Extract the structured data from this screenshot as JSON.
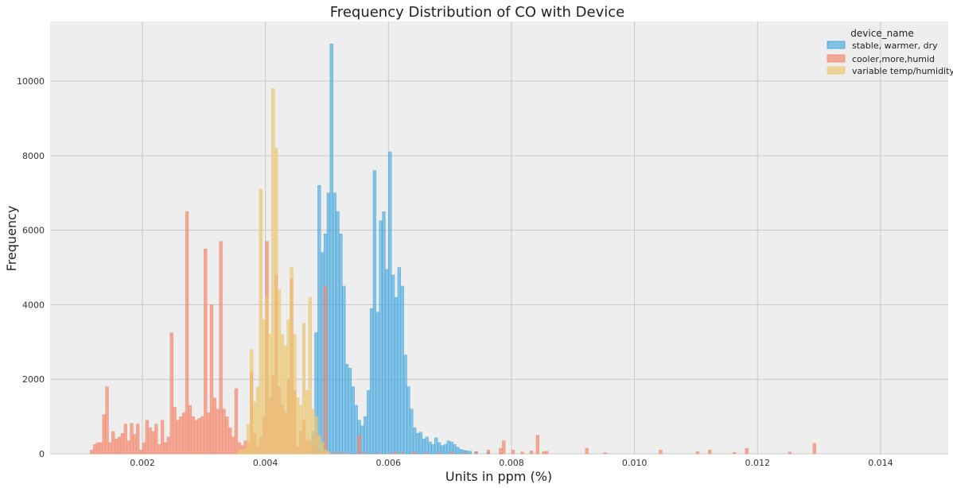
{
  "chart_data": {
    "type": "bar",
    "title": "Frequency Distribution of CO with Device",
    "xlabel": "Units in ppm (%)",
    "ylabel": "Frequency",
    "xlim": [
      0.0005,
      0.0151
    ],
    "ylim": [
      0,
      11600
    ],
    "xticks": [
      0.002,
      0.004,
      0.006,
      0.008,
      0.01,
      0.012,
      0.014
    ],
    "xtick_labels": [
      "0.002",
      "0.004",
      "0.006",
      "0.008",
      "0.010",
      "0.012",
      "0.014"
    ],
    "yticks": [
      0,
      2000,
      4000,
      6000,
      8000,
      10000
    ],
    "ytick_labels": [
      "0",
      "2000",
      "4000",
      "6000",
      "8000",
      "10000"
    ],
    "grid": true,
    "legend": {
      "title": "device_name",
      "placement": "top-right"
    },
    "bin_width": 5e-05,
    "series": [
      {
        "name": "stable, warmer, dry",
        "color": "#3ba3dc",
        "bins": [
          [
            0.0047,
            50
          ],
          [
            0.00475,
            600
          ],
          [
            0.0048,
            3250
          ],
          [
            0.00485,
            7200
          ],
          [
            0.0049,
            5400
          ],
          [
            0.00495,
            5900
          ],
          [
            0.005,
            7000
          ],
          [
            0.00505,
            11000
          ],
          [
            0.0051,
            7000
          ],
          [
            0.00515,
            6500
          ],
          [
            0.0052,
            5900
          ],
          [
            0.00525,
            4500
          ],
          [
            0.0053,
            2400
          ],
          [
            0.00535,
            2300
          ],
          [
            0.0054,
            1800
          ],
          [
            0.00545,
            1300
          ],
          [
            0.0055,
            900
          ],
          [
            0.00555,
            750
          ],
          [
            0.0056,
            1000
          ],
          [
            0.00565,
            1700
          ],
          [
            0.0057,
            3900
          ],
          [
            0.00575,
            7600
          ],
          [
            0.0058,
            3800
          ],
          [
            0.00585,
            6250
          ],
          [
            0.0059,
            6500
          ],
          [
            0.00595,
            4950
          ],
          [
            0.006,
            8100
          ],
          [
            0.00605,
            4800
          ],
          [
            0.0061,
            4200
          ],
          [
            0.00615,
            5000
          ],
          [
            0.0062,
            4500
          ],
          [
            0.00625,
            2650
          ],
          [
            0.0063,
            1800
          ],
          [
            0.00635,
            1200
          ],
          [
            0.0064,
            700
          ],
          [
            0.00645,
            550
          ],
          [
            0.0065,
            580
          ],
          [
            0.00655,
            400
          ],
          [
            0.0066,
            450
          ],
          [
            0.00665,
            320
          ],
          [
            0.0067,
            250
          ],
          [
            0.00675,
            430
          ],
          [
            0.0068,
            300
          ],
          [
            0.00685,
            220
          ],
          [
            0.0069,
            250
          ],
          [
            0.00695,
            350
          ],
          [
            0.007,
            320
          ],
          [
            0.00705,
            250
          ],
          [
            0.0071,
            180
          ],
          [
            0.00715,
            120
          ],
          [
            0.0072,
            100
          ],
          [
            0.00725,
            80
          ],
          [
            0.0073,
            70
          ],
          [
            0.0074,
            60
          ],
          [
            0.0076,
            40
          ],
          [
            0.0078,
            20
          ]
        ]
      },
      {
        "name": "cooler,more,humid",
        "color": "#f3876d",
        "bins": [
          [
            0.00115,
            100
          ],
          [
            0.0012,
            250
          ],
          [
            0.00125,
            300
          ],
          [
            0.0013,
            300
          ],
          [
            0.00135,
            1050
          ],
          [
            0.0014,
            1800
          ],
          [
            0.00145,
            300
          ],
          [
            0.0015,
            600
          ],
          [
            0.00155,
            400
          ],
          [
            0.0016,
            450
          ],
          [
            0.00165,
            550
          ],
          [
            0.0017,
            800
          ],
          [
            0.00175,
            350
          ],
          [
            0.0018,
            820
          ],
          [
            0.00185,
            520
          ],
          [
            0.0019,
            800
          ],
          [
            0.00195,
            100
          ],
          [
            0.002,
            300
          ],
          [
            0.00205,
            900
          ],
          [
            0.0021,
            700
          ],
          [
            0.00215,
            600
          ],
          [
            0.0022,
            800
          ],
          [
            0.00225,
            250
          ],
          [
            0.0023,
            900
          ],
          [
            0.00235,
            300
          ],
          [
            0.0024,
            450
          ],
          [
            0.00245,
            3250
          ],
          [
            0.0025,
            1250
          ],
          [
            0.00255,
            900
          ],
          [
            0.0026,
            1000
          ],
          [
            0.00265,
            1100
          ],
          [
            0.0027,
            6500
          ],
          [
            0.00275,
            1300
          ],
          [
            0.0028,
            1000
          ],
          [
            0.00285,
            900
          ],
          [
            0.0029,
            950
          ],
          [
            0.00295,
            1000
          ],
          [
            0.003,
            5500
          ],
          [
            0.00305,
            1100
          ],
          [
            0.0031,
            4000
          ],
          [
            0.00315,
            1500
          ],
          [
            0.0032,
            1200
          ],
          [
            0.00325,
            5700
          ],
          [
            0.0033,
            1200
          ],
          [
            0.00335,
            1000
          ],
          [
            0.0034,
            700
          ],
          [
            0.00345,
            450
          ],
          [
            0.0035,
            1750
          ],
          [
            0.00355,
            300
          ],
          [
            0.0036,
            220
          ],
          [
            0.00365,
            350
          ],
          [
            0.0037,
            300
          ],
          [
            0.00375,
            2200
          ],
          [
            0.0038,
            550
          ],
          [
            0.00385,
            200
          ],
          [
            0.0039,
            450
          ],
          [
            0.00395,
            1000
          ],
          [
            0.004,
            5700
          ],
          [
            0.00405,
            1500
          ],
          [
            0.0041,
            2100
          ],
          [
            0.00415,
            4800
          ],
          [
            0.0042,
            1800
          ],
          [
            0.00425,
            1300
          ],
          [
            0.0043,
            1100
          ],
          [
            0.00435,
            2000
          ],
          [
            0.0044,
            4700
          ],
          [
            0.00445,
            1700
          ],
          [
            0.0045,
            200
          ],
          [
            0.00455,
            600
          ],
          [
            0.0046,
            900
          ],
          [
            0.00465,
            350
          ],
          [
            0.0047,
            350
          ],
          [
            0.00475,
            200
          ],
          [
            0.0048,
            550
          ],
          [
            0.00485,
            60
          ],
          [
            0.0049,
            40
          ],
          [
            0.00495,
            4500
          ],
          [
            0.005,
            50
          ],
          [
            0.0051,
            40
          ],
          [
            0.0052,
            30
          ],
          [
            0.0053,
            30
          ],
          [
            0.0055,
            500
          ],
          [
            0.0056,
            30
          ],
          [
            0.0058,
            30
          ],
          [
            0.006,
            30
          ],
          [
            0.0061,
            50
          ],
          [
            0.0062,
            30
          ],
          [
            0.0064,
            60
          ],
          [
            0.0066,
            30
          ],
          [
            0.0068,
            30
          ],
          [
            0.007,
            40
          ],
          [
            0.0072,
            40
          ],
          [
            0.0074,
            50
          ],
          [
            0.0076,
            100
          ],
          [
            0.0078,
            150
          ],
          [
            0.00785,
            350
          ],
          [
            0.008,
            100
          ],
          [
            0.00815,
            50
          ],
          [
            0.0083,
            80
          ],
          [
            0.0084,
            500
          ],
          [
            0.0085,
            60
          ],
          [
            0.00855,
            70
          ],
          [
            0.0092,
            150
          ],
          [
            0.0095,
            30
          ],
          [
            0.0104,
            100
          ],
          [
            0.011,
            60
          ],
          [
            0.0112,
            100
          ],
          [
            0.0116,
            40
          ],
          [
            0.0118,
            150
          ],
          [
            0.0125,
            50
          ],
          [
            0.0129,
            280
          ]
        ]
      },
      {
        "name": "variable temp/humidity",
        "color": "#ebc775",
        "bins": [
          [
            0.00355,
            100
          ],
          [
            0.0036,
            120
          ],
          [
            0.00365,
            130
          ],
          [
            0.0037,
            800
          ],
          [
            0.00375,
            2800
          ],
          [
            0.0038,
            1400
          ],
          [
            0.00385,
            1800
          ],
          [
            0.0039,
            7100
          ],
          [
            0.00395,
            3600
          ],
          [
            0.004,
            4200
          ],
          [
            0.00405,
            3200
          ],
          [
            0.0041,
            9800
          ],
          [
            0.00415,
            8200
          ],
          [
            0.0042,
            4400
          ],
          [
            0.00425,
            3200
          ],
          [
            0.0043,
            2900
          ],
          [
            0.00435,
            3600
          ],
          [
            0.0044,
            5000
          ],
          [
            0.00445,
            3200
          ],
          [
            0.0045,
            1500
          ],
          [
            0.00455,
            1300
          ],
          [
            0.0046,
            3500
          ],
          [
            0.00465,
            1700
          ],
          [
            0.0047,
            4200
          ],
          [
            0.00475,
            1200
          ],
          [
            0.0048,
            1000
          ],
          [
            0.00485,
            500
          ],
          [
            0.0049,
            300
          ],
          [
            0.00495,
            100
          ],
          [
            0.005,
            50
          ]
        ]
      }
    ]
  }
}
